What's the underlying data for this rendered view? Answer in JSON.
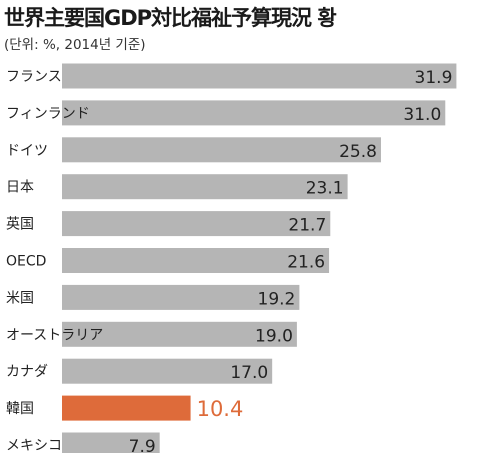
{
  "title": "世界主要国GDP対比福祉予算現況 황",
  "subtitle": "(단위: %, 2014년 기준)",
  "colors": {
    "bar": "#b5b5b5",
    "highlight": "#de6b3a",
    "highlight_text": "#de6b3a",
    "text": "#222222"
  },
  "chart_data": {
    "type": "bar",
    "orientation": "horizontal",
    "title": "世界主要国GDP対比福祉予算現況 황",
    "subtitle": "(단위: %, 2014년 기준)",
    "categories": [
      "フランス",
      "フィンランド",
      "ドイツ",
      "日本",
      "英国",
      "OECD",
      "米国",
      "オーストラリア",
      "カナダ",
      "韓国",
      "メキシコ"
    ],
    "values": [
      31.9,
      31.0,
      25.8,
      23.1,
      21.7,
      21.6,
      19.2,
      19.0,
      17.0,
      10.4,
      7.9
    ],
    "labels": [
      "31.9",
      "31.0",
      "25.8",
      "23.1",
      "21.7",
      "21.6",
      "19.2",
      "19.0",
      "17.0",
      "10.4",
      "7.9"
    ],
    "highlight": "韓国",
    "xlim": [
      0,
      33
    ],
    "grid": false,
    "legend": "none"
  }
}
